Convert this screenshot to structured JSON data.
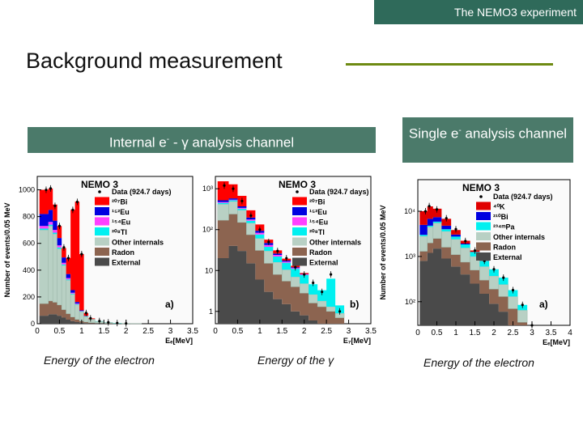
{
  "header": {
    "corner_label": "The NEMO3 experiment",
    "title": "Background measurement"
  },
  "channels": {
    "left": {
      "prefix": "Internal e",
      "sup": "-",
      "suffix": " - γ analysis channel"
    },
    "right": {
      "prefix": "Single e",
      "sup": "-",
      "suffix": " analysis channel"
    }
  },
  "captions": {
    "a": "Energy of the electron",
    "b": "Energy of the γ",
    "c": "Energy of the electron"
  },
  "colors": {
    "external": "#4a4a4a",
    "radon": "#8c6450",
    "other_internals": "#b8d0c4",
    "tl208": "#00f0f0",
    "eu154": "#ff40ff",
    "eu152": "#0000e0",
    "bi207": "#ff0000",
    "bi210": "#0000e0",
    "k40": "#e00000",
    "pa234m": "#00f0f0",
    "data": "#000000",
    "header_bg": "#2f6a5a",
    "channel_bg": "#4b7a6a",
    "rule": "#6e8a12"
  },
  "chart_data": [
    {
      "type": "area",
      "id": "a",
      "title": "NEMO 3",
      "panel_label": "a)",
      "xlabel": "Eₑ[MeV]",
      "ylabel": "Number of events/0.05 MeV",
      "xlim": [
        0,
        3.5
      ],
      "ylim": [
        0,
        1100
      ],
      "xticks": [
        "0",
        "0.5",
        "1",
        "1.5",
        "2",
        "2.5",
        "3",
        "3.5"
      ],
      "yticks": [
        "0",
        "200",
        "400",
        "600",
        "800",
        "1000"
      ],
      "legend": [
        {
          "label": "Data (924.7 days)",
          "key": "data"
        },
        {
          "label": "²⁰⁷Bi",
          "key": "bi207"
        },
        {
          "label": "¹⁵²Eu",
          "key": "eu152"
        },
        {
          "label": "¹⁵⁴Eu",
          "key": "eu154"
        },
        {
          "label": "²⁰⁸Tl",
          "key": "tl208"
        },
        {
          "label": "Other internals",
          "key": "other_internals"
        },
        {
          "label": "Radon",
          "key": "radon"
        },
        {
          "label": "External",
          "key": "external"
        }
      ],
      "x": [
        0.2,
        0.3,
        0.4,
        0.5,
        0.6,
        0.7,
        0.8,
        0.9,
        1.0,
        1.1,
        1.2,
        1.4,
        1.6,
        1.8,
        2.0,
        2.2,
        2.5
      ],
      "stack": [
        {
          "name": "External",
          "key": "external",
          "values": [
            60,
            70,
            70,
            60,
            45,
            30,
            20,
            12,
            8,
            5,
            3,
            2,
            1,
            0,
            0,
            0,
            0
          ]
        },
        {
          "name": "Radon",
          "key": "radon",
          "values": [
            90,
            100,
            90,
            80,
            60,
            45,
            30,
            20,
            12,
            8,
            5,
            3,
            2,
            1,
            0,
            0,
            0
          ]
        },
        {
          "name": "Other internals",
          "key": "other_internals",
          "values": [
            550,
            560,
            510,
            420,
            330,
            250,
            170,
            110,
            70,
            40,
            25,
            12,
            6,
            3,
            2,
            1,
            0
          ]
        },
        {
          "name": "²⁰⁸Tl",
          "key": "tl208",
          "values": [
            10,
            10,
            10,
            10,
            8,
            6,
            5,
            4,
            3,
            3,
            2,
            2,
            1,
            1,
            0,
            0,
            0
          ]
        },
        {
          "name": "¹⁵⁴Eu",
          "key": "eu154",
          "values": [
            20,
            20,
            20,
            15,
            12,
            10,
            6,
            4,
            2,
            1,
            0,
            0,
            0,
            0,
            0,
            0,
            0
          ]
        },
        {
          "name": "¹⁵²Eu",
          "key": "eu152",
          "values": [
            90,
            90,
            70,
            55,
            40,
            30,
            20,
            12,
            5,
            2,
            0,
            0,
            0,
            0,
            0,
            0,
            0
          ]
        },
        {
          "name": "²⁰⁷Bi",
          "key": "bi207",
          "values": [
            180,
            160,
            120,
            90,
            70,
            120,
            600,
            750,
            420,
            20,
            5,
            0,
            0,
            0,
            0,
            0,
            0
          ]
        }
      ],
      "data_points": [
        [
          0.2,
          1000
        ],
        [
          0.3,
          1010
        ],
        [
          0.4,
          880
        ],
        [
          0.5,
          730
        ],
        [
          0.6,
          570
        ],
        [
          0.7,
          490
        ],
        [
          0.8,
          850
        ],
        [
          0.9,
          910
        ],
        [
          1.0,
          520
        ],
        [
          1.1,
          80
        ],
        [
          1.2,
          40
        ],
        [
          1.4,
          20
        ],
        [
          1.6,
          10
        ],
        [
          1.8,
          5
        ],
        [
          2.0,
          2
        ]
      ]
    },
    {
      "type": "area",
      "id": "b",
      "title": "NEMO 3",
      "panel_label": "b)",
      "xlabel": "E₇[MeV]",
      "ylabel": "",
      "yscale": "log",
      "xlim": [
        0,
        3.5
      ],
      "ylim": [
        0.5,
        2000
      ],
      "xticks": [
        "0",
        "0.5",
        "1",
        "1.5",
        "2",
        "2.5",
        "3",
        "3.5"
      ],
      "yticks": [
        "1",
        "10",
        "10²",
        "10³"
      ],
      "legend": [
        {
          "label": "Data (924.7 days)",
          "key": "data"
        },
        {
          "label": "²⁰⁷Bi",
          "key": "bi207"
        },
        {
          "label": "¹⁵²Eu",
          "key": "eu152"
        },
        {
          "label": "¹⁵⁴Eu",
          "key": "eu154"
        },
        {
          "label": "²⁰⁸Tl",
          "key": "tl208"
        },
        {
          "label": "Other internals",
          "key": "other_internals"
        },
        {
          "label": "Radon",
          "key": "radon"
        },
        {
          "label": "External",
          "key": "external"
        }
      ],
      "x": [
        0.2,
        0.4,
        0.6,
        0.8,
        1.0,
        1.2,
        1.4,
        1.6,
        1.8,
        2.0,
        2.2,
        2.4,
        2.6,
        2.8
      ],
      "stack": [
        {
          "name": "External",
          "key": "external",
          "values": [
            20,
            40,
            30,
            15,
            6,
            3,
            2,
            1.5,
            1,
            0.8,
            0.6,
            0.5,
            0.4,
            0.3
          ]
        },
        {
          "name": "Radon",
          "key": "radon",
          "values": [
            150,
            200,
            120,
            60,
            25,
            12,
            6,
            4,
            3,
            2,
            1,
            0.8,
            0.6,
            0.4
          ]
        },
        {
          "name": "Other internals",
          "key": "other_internals",
          "values": [
            250,
            250,
            150,
            70,
            30,
            15,
            8,
            5,
            3,
            2,
            1,
            0.5,
            0.3,
            0.2
          ]
        },
        {
          "name": "²⁰⁸Tl",
          "key": "tl208",
          "values": [
            30,
            30,
            25,
            20,
            15,
            8,
            6,
            5,
            4,
            3,
            2,
            1.5,
            5,
            0.5
          ]
        },
        {
          "name": "¹⁵⁴Eu",
          "key": "eu154",
          "values": [
            20,
            20,
            15,
            12,
            8,
            4,
            2,
            1,
            0.5,
            0.2,
            0,
            0,
            0,
            0
          ]
        },
        {
          "name": "¹⁵²Eu",
          "key": "eu152",
          "values": [
            50,
            40,
            30,
            20,
            10,
            5,
            2,
            1,
            0.5,
            0.2,
            0,
            0,
            0,
            0
          ]
        },
        {
          "name": "²⁰⁷Bi",
          "key": "bi207",
          "values": [
            1000,
            700,
            300,
            100,
            40,
            10,
            5,
            2,
            1,
            0.5,
            0,
            0,
            0,
            0
          ]
        }
      ],
      "data_points": [
        [
          0.2,
          1200
        ],
        [
          0.4,
          1000
        ],
        [
          0.6,
          500
        ],
        [
          0.8,
          220
        ],
        [
          1.0,
          100
        ],
        [
          1.2,
          50
        ],
        [
          1.4,
          30
        ],
        [
          1.6,
          20
        ],
        [
          1.8,
          12
        ],
        [
          2.0,
          8
        ],
        [
          2.2,
          5
        ],
        [
          2.4,
          3
        ],
        [
          2.6,
          8
        ],
        [
          2.8,
          1
        ]
      ]
    },
    {
      "type": "area",
      "id": "c",
      "title": "NEMO 3",
      "panel_label": "a)",
      "xlabel": "Eₑ[MeV]",
      "ylabel": "Number of events/0.05 MeV",
      "yscale": "log",
      "xlim": [
        0,
        4
      ],
      "ylim": [
        30,
        50000
      ],
      "xticks": [
        "0",
        "0.5",
        "1",
        "1.5",
        "2",
        "2.5",
        "3",
        "3.5",
        "4"
      ],
      "yticks": [
        "10²",
        "10³",
        "10⁴"
      ],
      "legend": [
        {
          "label": "Data (924.7 days)",
          "key": "data"
        },
        {
          "label": "⁴⁰K",
          "key": "k40"
        },
        {
          "label": "²¹⁰Bi",
          "key": "bi210"
        },
        {
          "label": "²³⁴ᵐPa",
          "key": "pa234m"
        },
        {
          "label": "Other internals",
          "key": "other_internals"
        },
        {
          "label": "Radon",
          "key": "radon"
        },
        {
          "label": "External",
          "key": "external"
        }
      ],
      "x": [
        0.2,
        0.3,
        0.5,
        0.75,
        1.0,
        1.25,
        1.5,
        1.75,
        2.0,
        2.25,
        2.5,
        2.75,
        3.0
      ],
      "stack": [
        {
          "name": "External",
          "key": "external",
          "values": [
            800,
            1200,
            1500,
            900,
            600,
            400,
            250,
            150,
            90,
            60,
            30,
            15,
            5
          ]
        },
        {
          "name": "Radon",
          "key": "radon",
          "values": [
            500,
            800,
            1000,
            700,
            500,
            350,
            250,
            150,
            100,
            70,
            40,
            20,
            8
          ]
        },
        {
          "name": "Other internals",
          "key": "other_internals",
          "values": [
            1500,
            2500,
            3000,
            2000,
            1300,
            800,
            500,
            300,
            180,
            110,
            60,
            30,
            10
          ]
        },
        {
          "name": "²³⁴ᵐPa",
          "key": "pa234m",
          "values": [
            200,
            300,
            400,
            400,
            350,
            300,
            250,
            200,
            150,
            100,
            50,
            20,
            5
          ]
        },
        {
          "name": "²¹⁰Bi",
          "key": "bi210",
          "values": [
            2000,
            2000,
            1500,
            800,
            300,
            80,
            10,
            2,
            0,
            0,
            0,
            0,
            0
          ]
        },
        {
          "name": "⁴⁰K",
          "key": "k40",
          "values": [
            5000,
            6000,
            4000,
            2000,
            800,
            300,
            100,
            20,
            0,
            0,
            0,
            0,
            0
          ]
        }
      ],
      "data_points": [
        [
          0.2,
          10000
        ],
        [
          0.3,
          13000
        ],
        [
          0.5,
          11000
        ],
        [
          0.75,
          7000
        ],
        [
          1.0,
          4000
        ],
        [
          1.25,
          2200
        ],
        [
          1.5,
          1350
        ],
        [
          1.75,
          800
        ],
        [
          2.0,
          520
        ],
        [
          2.25,
          340
        ],
        [
          2.5,
          180
        ],
        [
          2.75,
          85
        ],
        [
          3.0,
          28
        ]
      ]
    }
  ]
}
